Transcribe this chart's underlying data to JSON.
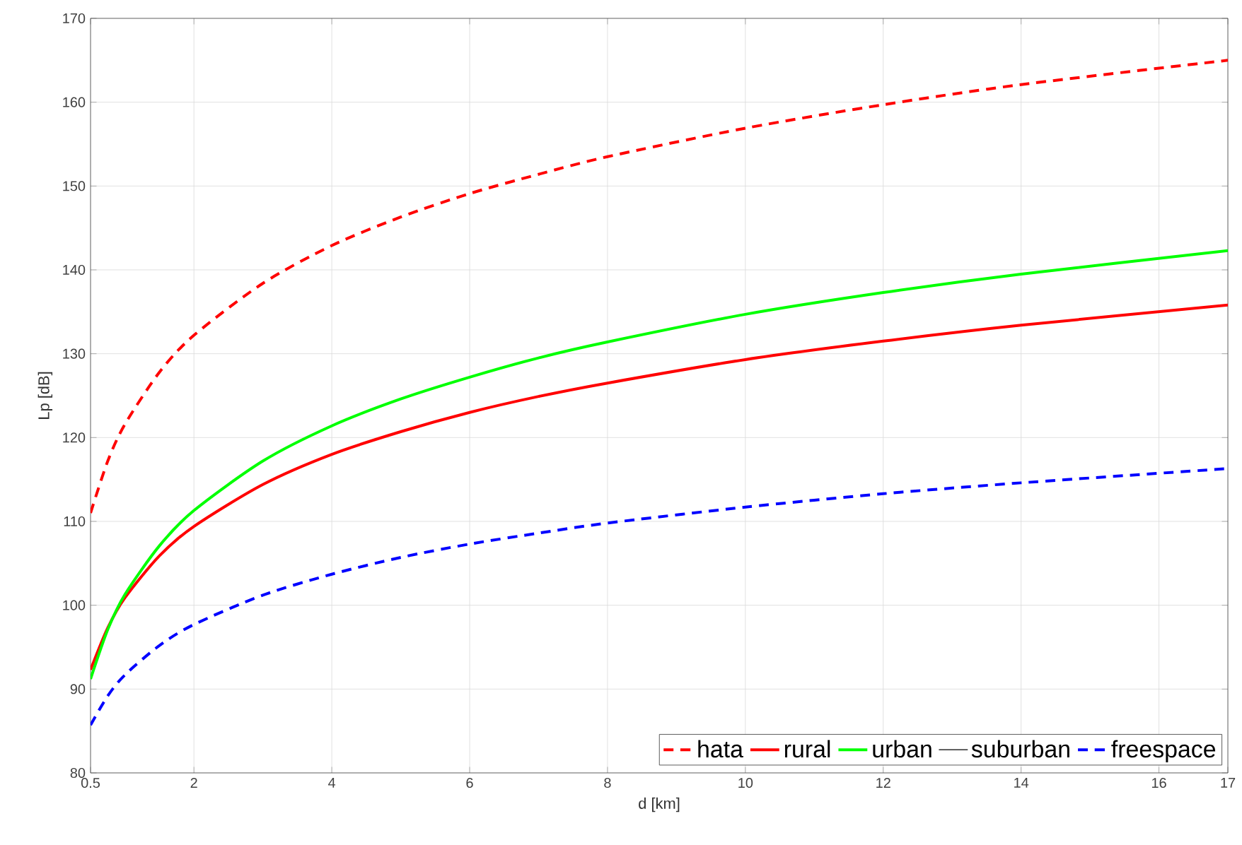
{
  "chart_data": {
    "type": "line",
    "xlabel": "d [km]",
    "ylabel": "Lp [dB]",
    "x": [
      0.5,
      0.75,
      1,
      1.5,
      2,
      3,
      4,
      5,
      6,
      7,
      8,
      10,
      12,
      14,
      17
    ],
    "series": [
      {
        "name": "hata",
        "color": "#ff0000",
        "line_style": "dashed",
        "values": [
          111.0,
          117.2,
          121.6,
          127.8,
          132.2,
          138.4,
          142.9,
          146.3,
          149.1,
          151.4,
          153.5,
          156.9,
          159.7,
          162.1,
          165.0
        ]
      },
      {
        "name": "rural",
        "color": "#ff0000",
        "line_style": "solid",
        "values": [
          92.3,
          97.3,
          100.9,
          105.9,
          109.4,
          114.4,
          118.0,
          120.7,
          123.0,
          124.9,
          126.5,
          129.3,
          131.5,
          133.4,
          135.8
        ]
      },
      {
        "name": "urban",
        "color": "#00ff00",
        "line_style": "solid",
        "values": [
          91.2,
          97.1,
          101.3,
          107.1,
          111.3,
          117.2,
          121.4,
          124.6,
          127.2,
          129.5,
          131.4,
          134.7,
          137.3,
          139.5,
          142.3
        ]
      },
      {
        "name": "suburban",
        "color": "#000000",
        "line_style": "solid",
        "values": [
          null,
          null,
          null,
          null,
          null,
          null,
          null,
          null,
          null,
          null,
          null,
          null,
          null,
          null,
          null
        ]
      },
      {
        "name": "freespace",
        "color": "#0000ff",
        "line_style": "dashed",
        "values": [
          85.7,
          89.2,
          91.7,
          95.2,
          97.7,
          101.2,
          103.7,
          105.7,
          107.3,
          108.6,
          109.8,
          111.7,
          113.3,
          114.6,
          116.3
        ]
      }
    ],
    "xlim": [
      0.5,
      17
    ],
    "xticks": [
      0.5,
      2,
      4,
      6,
      8,
      10,
      12,
      14,
      16,
      17
    ],
    "ylim": [
      80,
      170
    ],
    "yticks": [
      80,
      90,
      100,
      110,
      120,
      130,
      140,
      150,
      160,
      170
    ],
    "grid": true,
    "legend": "bottom right",
    "marker": "none"
  }
}
